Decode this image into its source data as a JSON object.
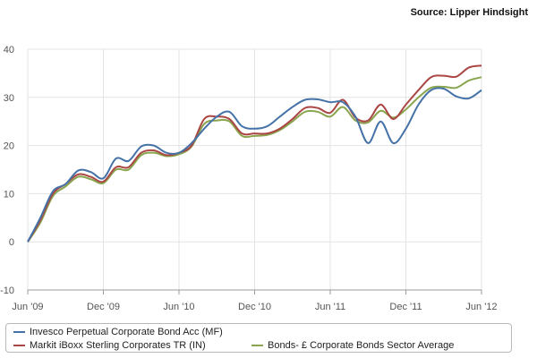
{
  "source_text": "Source: Lipper Hindsight",
  "chart_data": {
    "type": "line",
    "xlim": [
      "Jun '09",
      "Jun '12"
    ],
    "ylim": [
      -10,
      40
    ],
    "yticks": [
      -10,
      0,
      10,
      20,
      30,
      40
    ],
    "ytick_labels": [
      "-10",
      "0",
      "10",
      "20",
      "30",
      "40"
    ],
    "xtick_labels": [
      "Jun '09",
      "Dec '09",
      "Jun '10",
      "Dec '10",
      "Jun '11",
      "Dec '11",
      "Jun '12"
    ],
    "grid": "vertical and horizontal",
    "legend_position": "bottom",
    "x": [
      "Jun '09",
      "Jul '09",
      "Aug '09",
      "Sep '09",
      "Oct '09",
      "Nov '09",
      "Dec '09",
      "Jan '10",
      "Feb '10",
      "Mar '10",
      "Apr '10",
      "May '10",
      "Jun '10",
      "Jul '10",
      "Aug '10",
      "Sep '10",
      "Oct '10",
      "Nov '10",
      "Dec '10",
      "Jan '11",
      "Feb '11",
      "Mar '11",
      "Apr '11",
      "May '11",
      "Jun '11",
      "Jul '11",
      "Aug '11",
      "Sep '11",
      "Oct '11",
      "Nov '11",
      "Dec '11",
      "Jan '12",
      "Feb '12",
      "Mar '12",
      "Apr '12",
      "May '12",
      "Jun '12"
    ],
    "series": [
      {
        "name": "Invesco Perpetual Corporate Bond Acc (MF)",
        "color": "#4572a7",
        "values": [
          0,
          5,
          10.5,
          12,
          14.8,
          14.5,
          13.2,
          17.3,
          16.8,
          19.8,
          20,
          18.5,
          18.5,
          20.5,
          23.5,
          26,
          27,
          24,
          23.5,
          24,
          26,
          28,
          29.5,
          29.6,
          29,
          29,
          26,
          20.5,
          25,
          20.5,
          23.5,
          28.5,
          31.5,
          31.8,
          30.2,
          29.8,
          31.5
        ]
      },
      {
        "name": "Markit iBoxx Sterling Corporates TR (IN)",
        "color": "#aa4643",
        "values": [
          0,
          4.5,
          10,
          12,
          14,
          13.5,
          12.5,
          15.5,
          15.5,
          18.5,
          19,
          18,
          18.5,
          20,
          25.5,
          26,
          25.5,
          22.5,
          22.5,
          22.5,
          23.5,
          25.5,
          27.8,
          27.8,
          26.8,
          29.5,
          25.8,
          25.2,
          28.5,
          25.5,
          28.5,
          31.5,
          34.2,
          34.5,
          34.3,
          36.2,
          36.6
        ]
      },
      {
        "name": "Bonds- £ Corporate Bonds Sector Average",
        "color": "#89a54e",
        "values": [
          0,
          4,
          9.5,
          11.5,
          13.5,
          13,
          12.2,
          15,
          15,
          18,
          18.5,
          17.8,
          18.2,
          19.8,
          24.5,
          25.2,
          25,
          22,
          22,
          22.2,
          23.2,
          25,
          27,
          27,
          26,
          28,
          25.2,
          24.8,
          27.2,
          25.8,
          27.5,
          30,
          32,
          32.2,
          32,
          33.5,
          34.2
        ]
      }
    ]
  }
}
